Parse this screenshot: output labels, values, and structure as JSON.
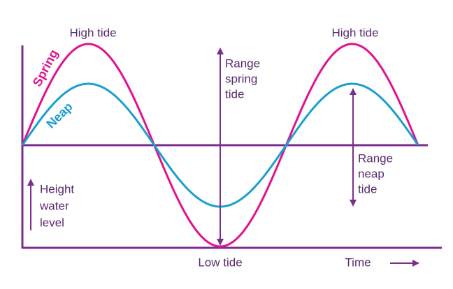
{
  "labels": {
    "high_tide_left": "High tide",
    "high_tide_right": "High tide",
    "spring": "Spring",
    "neap": "Neap",
    "range_spring": [
      "Range",
      "spring",
      "tide"
    ],
    "range_neap": [
      "Range",
      "neap",
      "tide"
    ],
    "height": [
      "Height",
      "water",
      "level"
    ],
    "low_tide": "Low tide",
    "time": "Time"
  }
}
